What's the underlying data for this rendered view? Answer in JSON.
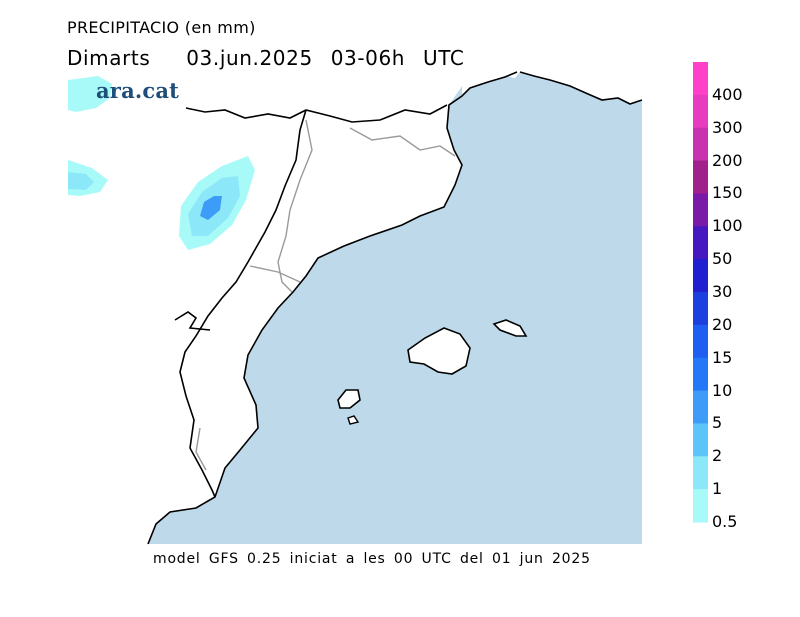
{
  "header": {
    "title": "PRECIPITACIO (en mm)",
    "subtitle": "Dimarts    03.jun.2025  03-06h  UTC"
  },
  "brand": {
    "logo_text": "ara.cat"
  },
  "footer": {
    "text": "model GFS 0.25 iniciat a les 00 UTC del 01 jun 2025"
  },
  "legend": {
    "levels": [
      {
        "label": "400",
        "color": "#ff40c8"
      },
      {
        "label": "300",
        "color": "#e83cc0"
      },
      {
        "label": "200",
        "color": "#c832b0"
      },
      {
        "label": "150",
        "color": "#a0208c"
      },
      {
        "label": "100",
        "color": "#7a1aa8"
      },
      {
        "label": "50",
        "color": "#4618c0"
      },
      {
        "label": "30",
        "color": "#2020d0"
      },
      {
        "label": "20",
        "color": "#1c40e0"
      },
      {
        "label": "15",
        "color": "#1e5ef0"
      },
      {
        "label": "10",
        "color": "#2478f8"
      },
      {
        "label": "5",
        "color": "#3c9cf8"
      },
      {
        "label": "2",
        "color": "#5cc4f8"
      },
      {
        "label": "1",
        "color": "#8ce8f8"
      },
      {
        "label": "0.5",
        "color": "#a8faf8"
      }
    ]
  },
  "map": {
    "sea_color": "#bed9ea",
    "land_color": "#ffffff",
    "precip_light_color": "#a8faf8",
    "precip_mid_color": "#5cc4f8",
    "precip_core_color": "#3c9cf8"
  }
}
